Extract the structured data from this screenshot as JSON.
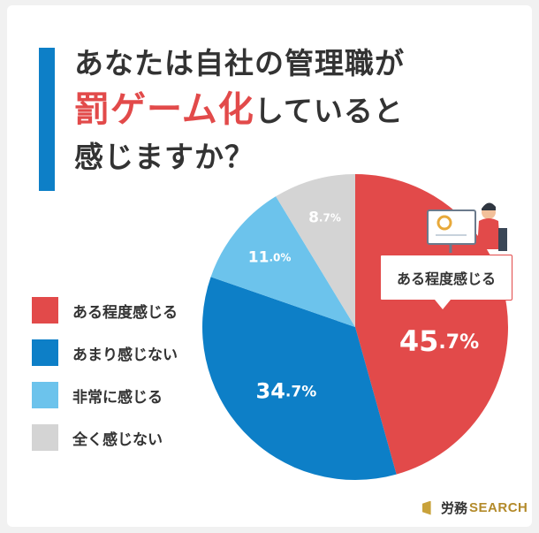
{
  "title": {
    "line1": "あなたは自社の管理職が",
    "line2_emph": "罰ゲーム化",
    "line2_rest": "していると",
    "line3": "感じますか？"
  },
  "callout": {
    "label": "ある程度感じる"
  },
  "brand": {
    "jp": "労務",
    "en": "SEARCH"
  },
  "colors": {
    "accent": "#0d7fc7",
    "emphasis": "#e24a4a"
  },
  "chart_data": {
    "type": "pie",
    "title": "あなたは自社の管理職が罰ゲーム化していると感じますか？",
    "categories": [
      "ある程度感じる",
      "あまり感じない",
      "非常に感じる",
      "全く感じない"
    ],
    "values": [
      45.7,
      34.7,
      11.0,
      8.7
    ],
    "labels": [
      "45.7%",
      "34.7%",
      "11.0%",
      "8.7%"
    ],
    "colors": [
      "#e24a4a",
      "#0d7fc7",
      "#6cc3ec",
      "#d4d4d4"
    ],
    "start": "top",
    "direction": "clockwise",
    "legend": "left"
  }
}
